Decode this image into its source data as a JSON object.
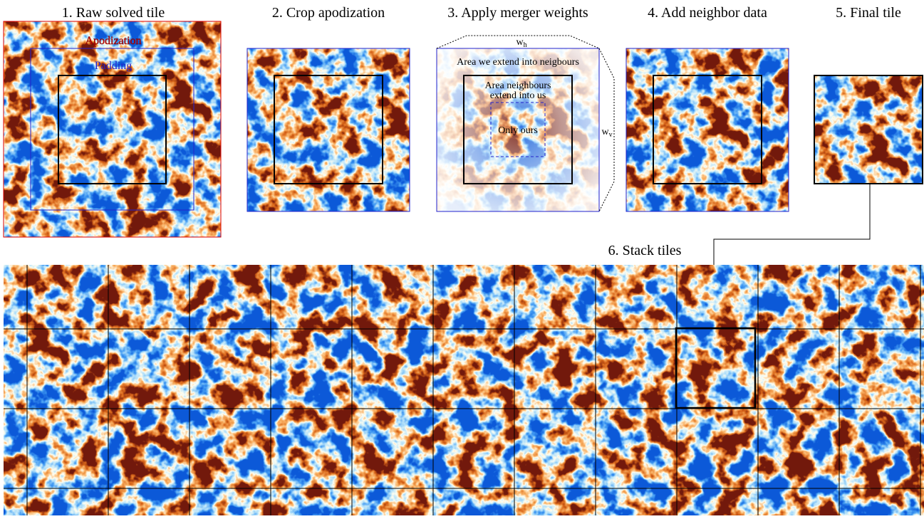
{
  "steps": [
    {
      "title": "1. Raw solved tile",
      "labels": {
        "apodization": "Apodization",
        "padding": "Padding"
      }
    },
    {
      "title": "2. Crop apodization"
    },
    {
      "title": "3. Apply merger weights",
      "labels": {
        "outer": "Area we extend into neigbours",
        "middle": [
          "Area neighbours",
          "extend into us"
        ],
        "inner": "Only ours",
        "width_h": {
          "symbol": "w",
          "subscript": "h"
        },
        "width_v": {
          "symbol": "w",
          "subscript": "v"
        }
      }
    },
    {
      "title": "4. Add neighbor data"
    },
    {
      "title": "5. Final tile"
    },
    {
      "title": "6. Stack tiles"
    }
  ]
}
